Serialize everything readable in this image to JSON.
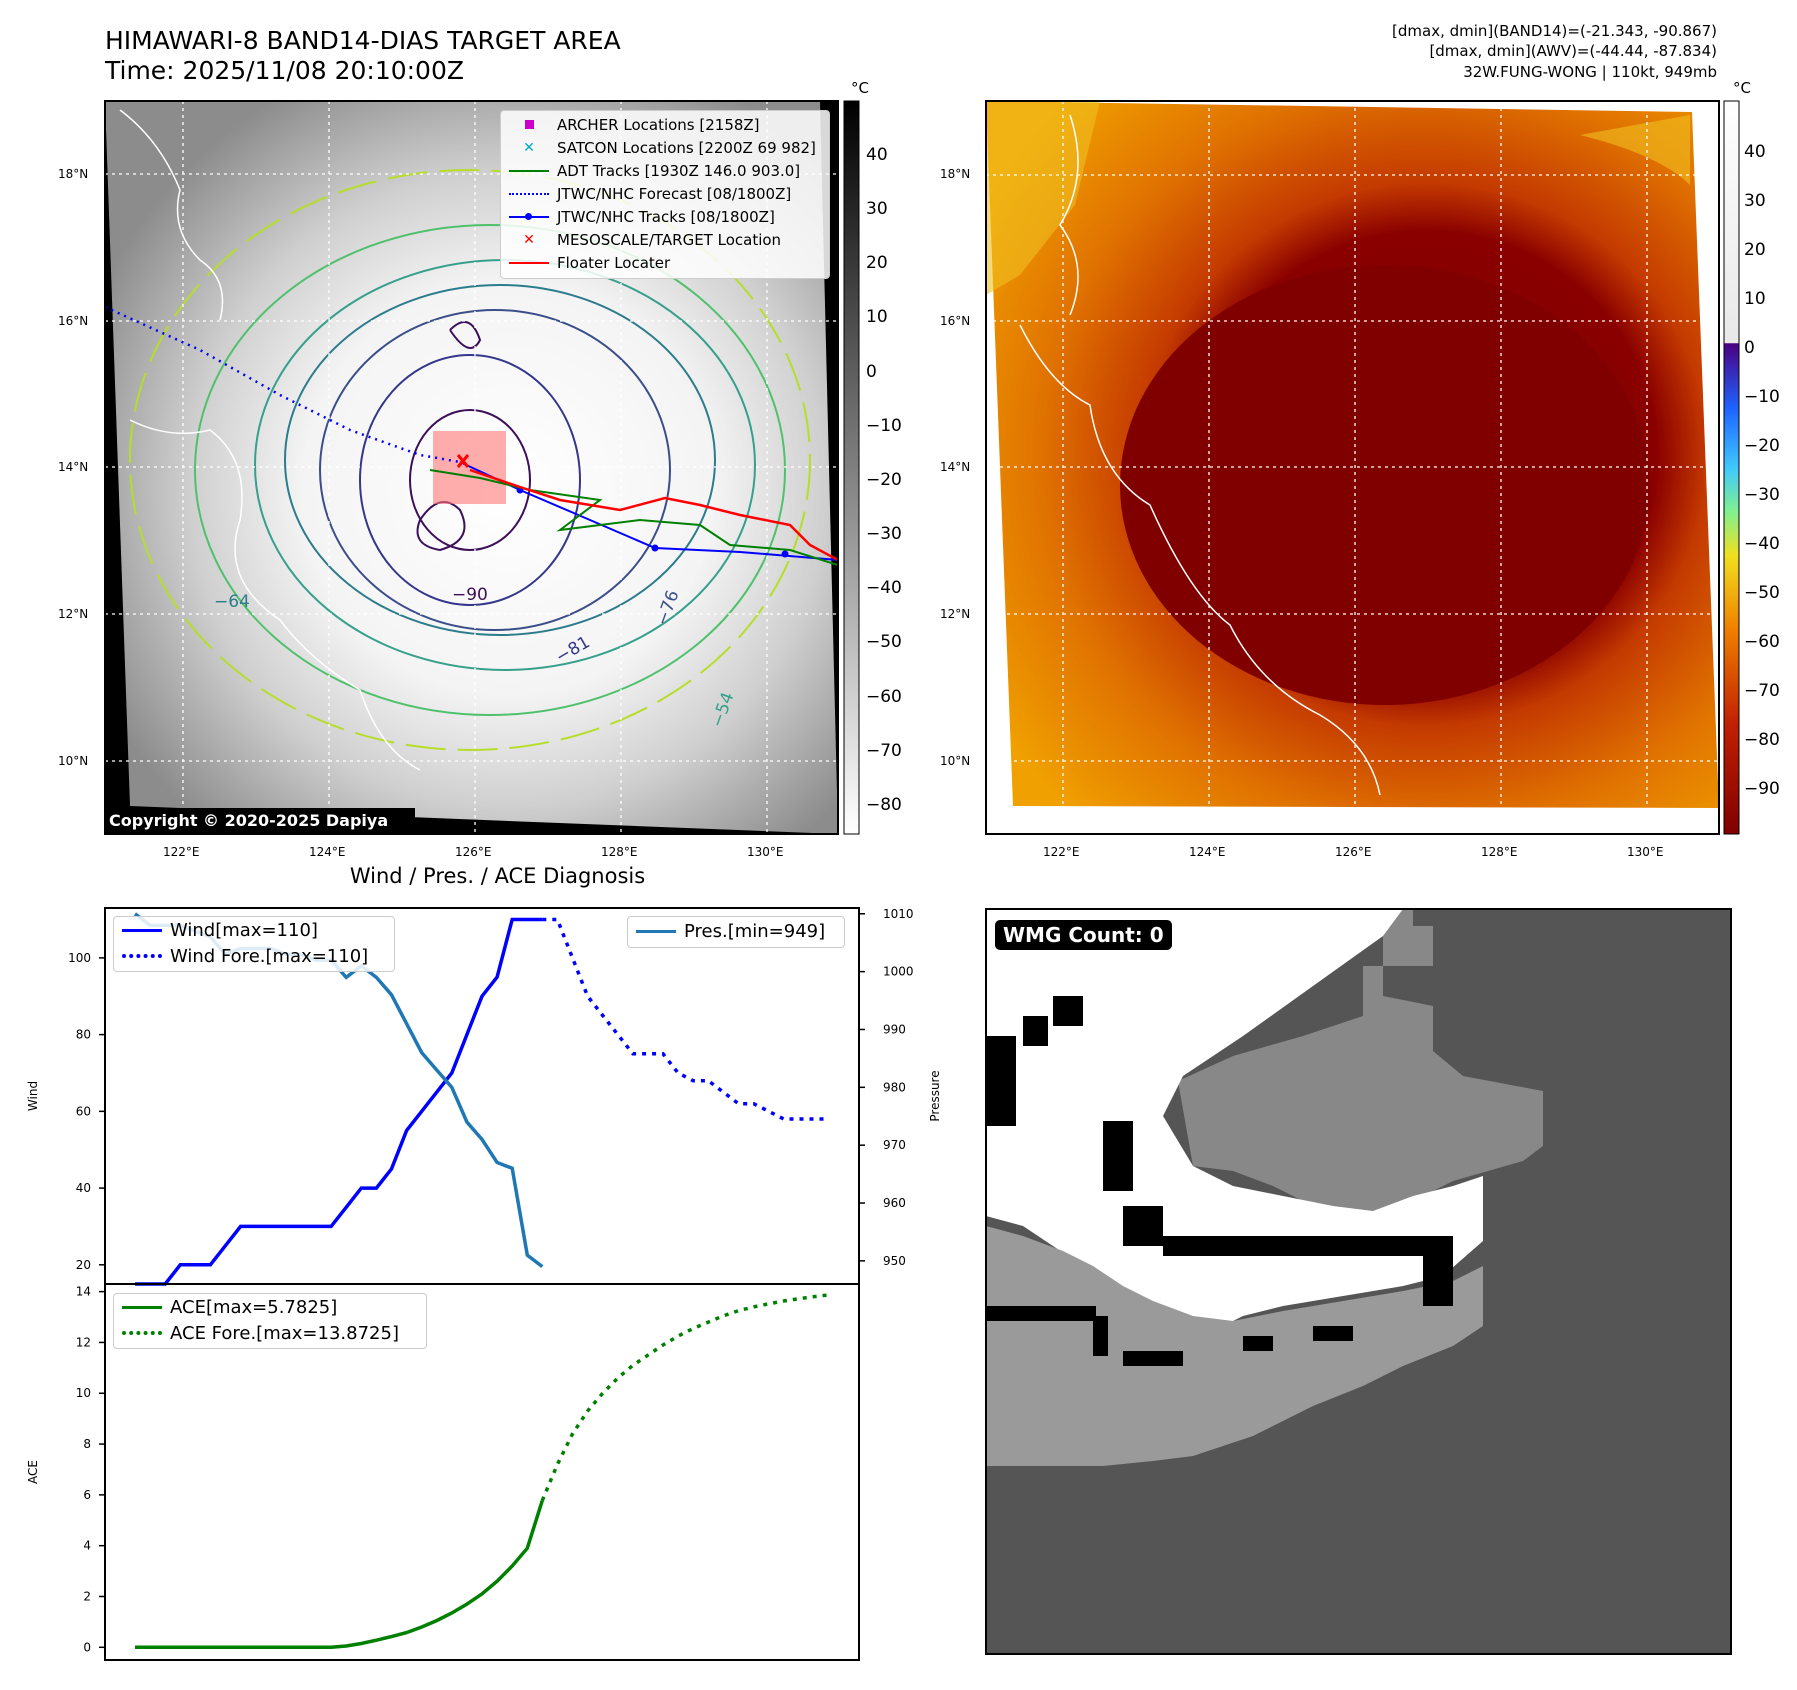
{
  "header": {
    "title_line1": "HIMAWARI-8 BAND14-DIAS TARGET AREA",
    "title_line2": "Time: 2025/11/08 20:10:00Z",
    "info_line1": "[dmax, dmin](BAND14)=(-21.343, -90.867)",
    "info_line2": "[dmax, dmin](AWV)=(-44.44, -87.834)",
    "info_line3": "32W.FUNG-WONG | 110kt, 949mb"
  },
  "map_left": {
    "colorbar_unit": "°C",
    "colorbar_ticks": [
      "40",
      "30",
      "20",
      "10",
      "0",
      "−10",
      "−20",
      "−30",
      "−40",
      "−50",
      "−60",
      "−70",
      "−80"
    ],
    "lat_labels": [
      "18°N",
      "16°N",
      "14°N",
      "12°N",
      "10°N"
    ],
    "lon_labels": [
      "122°E",
      "124°E",
      "126°E",
      "128°E",
      "130°E"
    ],
    "contour_labels": [
      "−90",
      "−81",
      "−76",
      "−64",
      "−54"
    ],
    "copyright": "Copyright © 2020-2025 Dapiya",
    "legend": [
      {
        "label": "ARCHER Locations [2158Z]",
        "color": "#cc00cc",
        "marker": "square"
      },
      {
        "label": "SATCON Locations [2200Z 69 982]",
        "color": "#00aabb",
        "marker": "x"
      },
      {
        "label": "ADT Tracks [1930Z 146.0 903.0]",
        "color": "#008000",
        "marker": "line"
      },
      {
        "label": "JTWC/NHC Forecast [08/1800Z]",
        "color": "#0000ff",
        "marker": "dotted"
      },
      {
        "label": "JTWC/NHC Tracks [08/1800Z]",
        "color": "#0000ff",
        "marker": "line-dot"
      },
      {
        "label": "MESOSCALE/TARGET Location",
        "color": "#ff0000",
        "marker": "x"
      },
      {
        "label": "Floater Locater",
        "color": "#ff0000",
        "marker": "line"
      }
    ]
  },
  "map_right": {
    "colorbar_unit": "°C",
    "colorbar_ticks": [
      "40",
      "30",
      "20",
      "10",
      "0",
      "−10",
      "−20",
      "−30",
      "−40",
      "−50",
      "−60",
      "−70",
      "−80",
      "−90"
    ],
    "lat_labels": [
      "18°N",
      "16°N",
      "14°N",
      "12°N",
      "10°N"
    ],
    "lon_labels": [
      "122°E",
      "124°E",
      "126°E",
      "128°E",
      "130°E"
    ]
  },
  "wmg": {
    "label": "WMG Count: 0"
  },
  "chart_data": [
    {
      "type": "line",
      "title": "Wind / Pres. / ACE Diagnosis",
      "ylabel": "Wind",
      "ylabel_right": "Pressure",
      "ylim": [
        15,
        113
      ],
      "ylim_right": [
        946,
        1011
      ],
      "yticks": [
        20,
        40,
        60,
        80,
        100
      ],
      "yticks_right": [
        950,
        960,
        970,
        980,
        990,
        1000,
        1010
      ],
      "series": [
        {
          "name": "Wind[max=110]",
          "color": "#0000ff",
          "style": "solid",
          "axis": "left",
          "x": [
            0,
            1,
            2,
            3,
            4,
            5,
            6,
            7,
            8,
            9,
            10,
            11,
            12,
            13,
            14,
            15,
            16,
            17,
            18,
            19,
            20,
            21,
            22,
            23,
            24,
            25,
            26,
            27
          ],
          "values": [
            15,
            15,
            15,
            20,
            20,
            20,
            25,
            30,
            30,
            30,
            30,
            30,
            30,
            30,
            35,
            40,
            40,
            45,
            55,
            60,
            65,
            70,
            80,
            90,
            95,
            110,
            110,
            110
          ]
        },
        {
          "name": "Wind Fore.[max=110]",
          "color": "#0000ff",
          "style": "dotted",
          "axis": "left",
          "x": [
            27,
            28,
            29,
            30,
            31,
            32,
            33,
            34,
            35,
            36,
            37,
            38,
            39,
            40,
            41,
            42,
            43,
            44,
            45,
            46
          ],
          "values": [
            110,
            110,
            100,
            90,
            85,
            80,
            75,
            75,
            75,
            70,
            68,
            68,
            65,
            62,
            62,
            60,
            58,
            58,
            58,
            58
          ]
        },
        {
          "name": "Pres.[min=949]",
          "color": "#1f77b4",
          "style": "solid",
          "axis": "right",
          "x": [
            0,
            1,
            2,
            3,
            4,
            5,
            6,
            7,
            8,
            9,
            10,
            11,
            12,
            13,
            14,
            15,
            16,
            17,
            18,
            19,
            20,
            21,
            22,
            23,
            24,
            25,
            26,
            27
          ],
          "values": [
            1010,
            1008,
            1008,
            1008,
            1007,
            1006,
            1003,
            1004,
            1004,
            1004,
            1003,
            1003,
            1002,
            1002,
            999,
            1001,
            999,
            996,
            991,
            986,
            983,
            980,
            974,
            971,
            967,
            966,
            951,
            949
          ]
        }
      ]
    },
    {
      "type": "line",
      "ylabel": "ACE",
      "ylim": [
        -0.5,
        14.3
      ],
      "yticks": [
        0,
        2,
        4,
        6,
        8,
        10,
        12,
        14
      ],
      "series": [
        {
          "name": "ACE[max=5.7825]",
          "color": "#008000",
          "style": "solid",
          "x": [
            0,
            2,
            4,
            6,
            8,
            10,
            12,
            13,
            14,
            15,
            16,
            17,
            18,
            19,
            20,
            21,
            22,
            23,
            24,
            25,
            26,
            27
          ],
          "values": [
            0,
            0,
            0,
            0,
            0,
            0,
            0,
            0,
            0.05,
            0.15,
            0.28,
            0.42,
            0.58,
            0.8,
            1.05,
            1.35,
            1.7,
            2.1,
            2.6,
            3.2,
            3.9,
            5.78
          ]
        },
        {
          "name": "ACE Fore.[max=13.8725]",
          "color": "#008000",
          "style": "dotted",
          "x": [
            27,
            28,
            29,
            30,
            31,
            32,
            33,
            34,
            35,
            36,
            37,
            38,
            39,
            40,
            41,
            42,
            43,
            44,
            45,
            46
          ],
          "values": [
            5.78,
            7.2,
            8.4,
            9.3,
            10.0,
            10.6,
            11.1,
            11.5,
            11.9,
            12.25,
            12.55,
            12.8,
            13.05,
            13.25,
            13.4,
            13.52,
            13.63,
            13.72,
            13.8,
            13.87
          ]
        }
      ]
    }
  ]
}
